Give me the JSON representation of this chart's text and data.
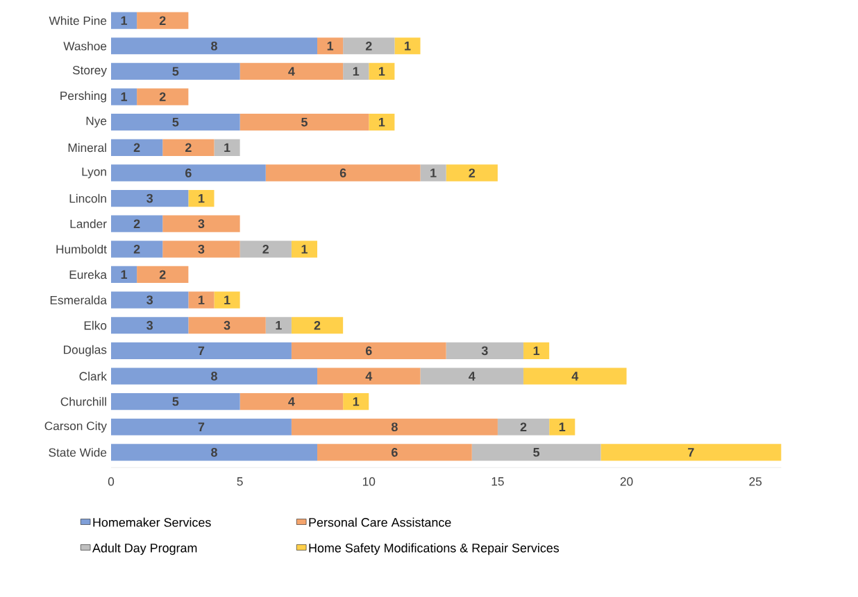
{
  "chart_data": {
    "type": "bar",
    "orientation": "horizontal",
    "stacked": true,
    "legend": "bottom",
    "grid": false,
    "categories": [
      "White Pine",
      "Washoe",
      "Storey",
      "Pershing",
      "Nye",
      "Mineral",
      "Lyon",
      "Lincoln",
      "Lander",
      "Humboldt",
      "Eureka",
      "Esmeralda",
      "Elko",
      "Douglas",
      "Clark",
      "Churchill",
      "Carson City",
      "State Wide"
    ],
    "xlim": [
      0,
      26
    ],
    "xticks": [
      0,
      5,
      10,
      15,
      20,
      25
    ],
    "series": [
      {
        "name": "Homemaker Services",
        "color": "#7f9fd8",
        "values": [
          1,
          8,
          5,
          1,
          5,
          2,
          6,
          3,
          2,
          2,
          1,
          3,
          3,
          7,
          8,
          5,
          7,
          8
        ],
        "value_labels": [
          "1",
          "8",
          "5",
          "1",
          "5",
          "2",
          "6",
          "3",
          "2",
          "2",
          "1",
          "3",
          "3",
          "7",
          "8",
          "5",
          "7",
          "8"
        ]
      },
      {
        "name": "Personal Care Assistance",
        "color": "#f4a46c",
        "values": [
          2,
          1,
          4,
          2,
          5,
          2,
          6,
          0,
          3,
          3,
          2,
          1,
          3,
          6,
          4,
          4,
          8,
          6
        ],
        "value_labels": [
          "2",
          "1",
          "4",
          "2",
          "5",
          "2",
          "6",
          null,
          "3",
          "3",
          "2",
          "1",
          "3",
          "6",
          "4",
          "4",
          "8",
          "6"
        ]
      },
      {
        "name": "Adult Day Program",
        "color": "#bfbfbf",
        "values": [
          0,
          2,
          1,
          0,
          0,
          1,
          1,
          0,
          0,
          2,
          0,
          0,
          1,
          3,
          4,
          0,
          2,
          5
        ],
        "value_labels": [
          null,
          "2",
          "1",
          null,
          null,
          "1",
          "1",
          null,
          null,
          "2",
          null,
          null,
          "1",
          "3",
          "4",
          null,
          "2",
          "5"
        ]
      },
      {
        "name": "Home Safety Modifications & Repair Services",
        "color": "#ffd04a",
        "values": [
          0,
          1,
          1,
          0,
          1,
          0,
          2,
          1,
          0,
          1,
          0,
          1,
          2,
          1,
          4,
          1,
          1,
          7
        ],
        "value_labels": [
          null,
          "1",
          "1",
          null,
          "1",
          null,
          "2",
          "1",
          null,
          "1",
          null,
          "1",
          "2",
          "1",
          "4",
          "1",
          "1",
          "7"
        ]
      }
    ]
  }
}
